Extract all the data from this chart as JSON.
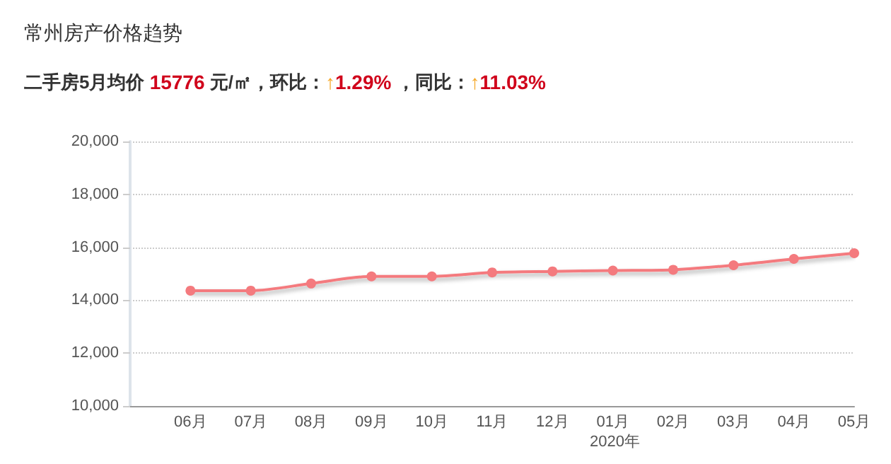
{
  "chart_data": {
    "type": "line",
    "title": "常州房产价格趋势",
    "subtitle": "二手房5月均价 15776 元/㎡，环比：↑1.29% ，同比：↑11.03%",
    "categories": [
      null,
      "06月",
      "07月",
      "08月",
      "09月",
      "10月",
      "11月",
      "12月",
      "01月",
      "02月",
      "03月",
      "04月",
      "05月"
    ],
    "series": [
      {
        "color": "#f47a7e",
        "values": [
          null,
          14360,
          14360,
          14630,
          14900,
          14900,
          15050,
          15090,
          15120,
          15150,
          15320,
          15560,
          15776
        ]
      }
    ],
    "ylim": [
      10000,
      20000
    ],
    "yticks": [
      {
        "value": 10000,
        "label": "10,000"
      },
      {
        "value": 12000,
        "label": "12,000"
      },
      {
        "value": 14000,
        "label": "14,000"
      },
      {
        "value": 16000,
        "label": "16,000"
      },
      {
        "value": 18000,
        "label": "18,000"
      },
      {
        "value": 20000,
        "label": "20,000"
      }
    ],
    "annotations": [
      "2020年"
    ],
    "grid": "y",
    "marker": "circle",
    "line_style": "solid"
  }
}
